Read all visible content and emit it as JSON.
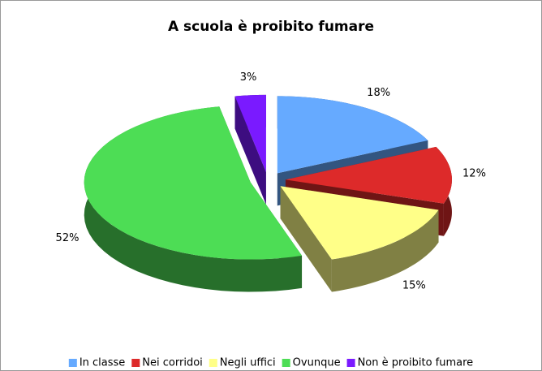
{
  "chart_data": {
    "type": "pie",
    "title": "A scuola è proibito fumare",
    "categories": [
      "In classe",
      "Nei corridoi",
      "Negli uffici",
      "Ovunque",
      "Non è proibito fumare"
    ],
    "values": [
      18,
      12,
      15,
      52,
      3
    ],
    "value_labels": [
      "18%",
      "12%",
      "15%",
      "52%",
      "3%"
    ],
    "colors": [
      "#66aaff",
      "#dd2a2a",
      "#ffff88",
      "#4ddd55",
      "#7a1aff"
    ],
    "legend": "bottom"
  }
}
